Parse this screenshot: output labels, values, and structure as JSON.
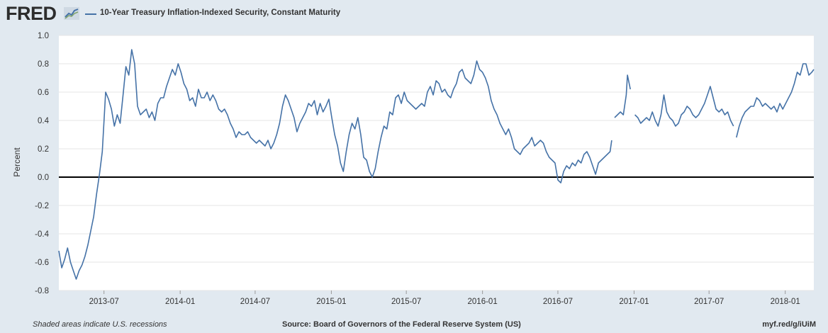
{
  "header": {
    "logo_text": "FRED",
    "logo_icon": "chart-line-icon",
    "series_title": "10-Year Treasury Inflation-Indexed Security, Constant Maturity",
    "series_color": "#4572a7"
  },
  "footer": {
    "left_note": "Shaded areas indicate U.S. recessions",
    "source": "Source: Board of Governors of the Federal Reserve System (US)",
    "link": "myf.red/g/iUiM"
  },
  "chart_data": {
    "type": "line",
    "title": "10-Year Treasury Inflation-Indexed Security, Constant Maturity",
    "xlabel": "",
    "ylabel": "Percent",
    "ylim": [
      -0.8,
      1.0
    ],
    "yticks": [
      "1.0",
      "0.8",
      "0.6",
      "0.4",
      "0.2",
      "0.0",
      "-0.2",
      "-0.4",
      "-0.6",
      "-0.8"
    ],
    "xlim": [
      "2013-03-14",
      "2018-03-11"
    ],
    "xticks": [
      "2013-07",
      "2014-01",
      "2014-07",
      "2015-01",
      "2015-07",
      "2016-01",
      "2016-07",
      "2017-01",
      "2017-07",
      "2018-01"
    ],
    "grid": "horizontal",
    "zero_line": true,
    "series": [
      {
        "name": "10-Year Treasury Inflation-Indexed Security, Constant Maturity",
        "color": "#4572a7",
        "points": [
          [
            "2013-03-14",
            -0.52
          ],
          [
            "2013-03-21",
            -0.64
          ],
          [
            "2013-03-28",
            -0.58
          ],
          [
            "2013-04-04",
            -0.5
          ],
          [
            "2013-04-11",
            -0.6
          ],
          [
            "2013-04-18",
            -0.66
          ],
          [
            "2013-04-25",
            -0.72
          ],
          [
            "2013-05-02",
            -0.66
          ],
          [
            "2013-05-09",
            -0.62
          ],
          [
            "2013-05-16",
            -0.56
          ],
          [
            "2013-05-23",
            -0.48
          ],
          [
            "2013-05-30",
            -0.38
          ],
          [
            "2013-06-06",
            -0.28
          ],
          [
            "2013-06-13",
            -0.12
          ],
          [
            "2013-06-20",
            0.02
          ],
          [
            "2013-06-27",
            0.18
          ],
          [
            "2013-07-05",
            0.6
          ],
          [
            "2013-07-12",
            0.55
          ],
          [
            "2013-07-19",
            0.48
          ],
          [
            "2013-07-26",
            0.36
          ],
          [
            "2013-08-02",
            0.44
          ],
          [
            "2013-08-09",
            0.38
          ],
          [
            "2013-08-16",
            0.58
          ],
          [
            "2013-08-23",
            0.78
          ],
          [
            "2013-08-30",
            0.72
          ],
          [
            "2013-09-06",
            0.9
          ],
          [
            "2013-09-13",
            0.8
          ],
          [
            "2013-09-20",
            0.5
          ],
          [
            "2013-09-27",
            0.44
          ],
          [
            "2013-10-04",
            0.46
          ],
          [
            "2013-10-11",
            0.48
          ],
          [
            "2013-10-18",
            0.42
          ],
          [
            "2013-10-25",
            0.46
          ],
          [
            "2013-11-01",
            0.4
          ],
          [
            "2013-11-08",
            0.52
          ],
          [
            "2013-11-15",
            0.56
          ],
          [
            "2013-11-22",
            0.56
          ],
          [
            "2013-11-29",
            0.64
          ],
          [
            "2013-12-06",
            0.7
          ],
          [
            "2013-12-13",
            0.76
          ],
          [
            "2013-12-20",
            0.72
          ],
          [
            "2013-12-27",
            0.8
          ],
          [
            "2014-01-03",
            0.74
          ],
          [
            "2014-01-10",
            0.66
          ],
          [
            "2014-01-17",
            0.62
          ],
          [
            "2014-01-24",
            0.54
          ],
          [
            "2014-01-31",
            0.56
          ],
          [
            "2014-02-07",
            0.5
          ],
          [
            "2014-02-14",
            0.62
          ],
          [
            "2014-02-21",
            0.56
          ],
          [
            "2014-02-28",
            0.56
          ],
          [
            "2014-03-07",
            0.6
          ],
          [
            "2014-03-14",
            0.54
          ],
          [
            "2014-03-21",
            0.58
          ],
          [
            "2014-03-28",
            0.54
          ],
          [
            "2014-04-04",
            0.48
          ],
          [
            "2014-04-11",
            0.46
          ],
          [
            "2014-04-18",
            0.48
          ],
          [
            "2014-04-25",
            0.44
          ],
          [
            "2014-05-02",
            0.38
          ],
          [
            "2014-05-09",
            0.34
          ],
          [
            "2014-05-16",
            0.28
          ],
          [
            "2014-05-23",
            0.32
          ],
          [
            "2014-05-30",
            0.3
          ],
          [
            "2014-06-06",
            0.3
          ],
          [
            "2014-06-13",
            0.32
          ],
          [
            "2014-06-20",
            0.28
          ],
          [
            "2014-06-27",
            0.26
          ],
          [
            "2014-07-04",
            0.24
          ],
          [
            "2014-07-11",
            0.26
          ],
          [
            "2014-07-18",
            0.24
          ],
          [
            "2014-07-25",
            0.22
          ],
          [
            "2014-08-01",
            0.26
          ],
          [
            "2014-08-08",
            0.2
          ],
          [
            "2014-08-15",
            0.24
          ],
          [
            "2014-08-22",
            0.3
          ],
          [
            "2014-08-29",
            0.38
          ],
          [
            "2014-09-05",
            0.5
          ],
          [
            "2014-09-12",
            0.58
          ],
          [
            "2014-09-19",
            0.54
          ],
          [
            "2014-09-26",
            0.48
          ],
          [
            "2014-10-03",
            0.42
          ],
          [
            "2014-10-10",
            0.32
          ],
          [
            "2014-10-17",
            0.38
          ],
          [
            "2014-10-24",
            0.42
          ],
          [
            "2014-10-31",
            0.46
          ],
          [
            "2014-11-07",
            0.52
          ],
          [
            "2014-11-14",
            0.5
          ],
          [
            "2014-11-21",
            0.54
          ],
          [
            "2014-11-28",
            0.44
          ],
          [
            "2014-12-05",
            0.52
          ],
          [
            "2014-12-12",
            0.46
          ],
          [
            "2014-12-19",
            0.5
          ],
          [
            "2014-12-26",
            0.55
          ],
          [
            "2015-01-02",
            0.42
          ],
          [
            "2015-01-09",
            0.3
          ],
          [
            "2015-01-16",
            0.22
          ],
          [
            "2015-01-23",
            0.1
          ],
          [
            "2015-01-30",
            0.04
          ],
          [
            "2015-02-06",
            0.18
          ],
          [
            "2015-02-13",
            0.3
          ],
          [
            "2015-02-20",
            0.38
          ],
          [
            "2015-02-27",
            0.34
          ],
          [
            "2015-03-06",
            0.42
          ],
          [
            "2015-03-13",
            0.3
          ],
          [
            "2015-03-20",
            0.14
          ],
          [
            "2015-03-27",
            0.12
          ],
          [
            "2015-04-03",
            0.04
          ],
          [
            "2015-04-10",
            0.0
          ],
          [
            "2015-04-17",
            0.06
          ],
          [
            "2015-04-24",
            0.18
          ],
          [
            "2015-05-01",
            0.28
          ],
          [
            "2015-05-08",
            0.36
          ],
          [
            "2015-05-15",
            0.34
          ],
          [
            "2015-05-22",
            0.46
          ],
          [
            "2015-05-29",
            0.44
          ],
          [
            "2015-06-05",
            0.56
          ],
          [
            "2015-06-12",
            0.58
          ],
          [
            "2015-06-19",
            0.52
          ],
          [
            "2015-06-26",
            0.6
          ],
          [
            "2015-07-03",
            0.54
          ],
          [
            "2015-07-10",
            0.52
          ],
          [
            "2015-07-17",
            0.5
          ],
          [
            "2015-07-24",
            0.48
          ],
          [
            "2015-07-31",
            0.5
          ],
          [
            "2015-08-07",
            0.52
          ],
          [
            "2015-08-14",
            0.5
          ],
          [
            "2015-08-21",
            0.6
          ],
          [
            "2015-08-28",
            0.64
          ],
          [
            "2015-09-04",
            0.58
          ],
          [
            "2015-09-11",
            0.68
          ],
          [
            "2015-09-18",
            0.66
          ],
          [
            "2015-09-25",
            0.6
          ],
          [
            "2015-10-02",
            0.62
          ],
          [
            "2015-10-09",
            0.58
          ],
          [
            "2015-10-16",
            0.56
          ],
          [
            "2015-10-23",
            0.62
          ],
          [
            "2015-10-30",
            0.66
          ],
          [
            "2015-11-06",
            0.74
          ],
          [
            "2015-11-13",
            0.76
          ],
          [
            "2015-11-20",
            0.7
          ],
          [
            "2015-11-27",
            0.68
          ],
          [
            "2015-12-04",
            0.66
          ],
          [
            "2015-12-11",
            0.72
          ],
          [
            "2015-12-18",
            0.82
          ],
          [
            "2015-12-25",
            0.76
          ],
          [
            "2016-01-01",
            0.74
          ],
          [
            "2016-01-08",
            0.7
          ],
          [
            "2016-01-15",
            0.64
          ],
          [
            "2016-01-22",
            0.54
          ],
          [
            "2016-01-29",
            0.48
          ],
          [
            "2016-02-05",
            0.44
          ],
          [
            "2016-02-12",
            0.38
          ],
          [
            "2016-02-19",
            0.34
          ],
          [
            "2016-02-26",
            0.3
          ],
          [
            "2016-03-04",
            0.34
          ],
          [
            "2016-03-11",
            0.28
          ],
          [
            "2016-03-18",
            0.2
          ],
          [
            "2016-03-25",
            0.18
          ],
          [
            "2016-04-01",
            0.16
          ],
          [
            "2016-04-08",
            0.2
          ],
          [
            "2016-04-15",
            0.22
          ],
          [
            "2016-04-22",
            0.24
          ],
          [
            "2016-04-29",
            0.28
          ],
          [
            "2016-05-06",
            0.22
          ],
          [
            "2016-05-13",
            0.24
          ],
          [
            "2016-05-20",
            0.26
          ],
          [
            "2016-05-27",
            0.24
          ],
          [
            "2016-06-03",
            0.18
          ],
          [
            "2016-06-10",
            0.14
          ],
          [
            "2016-06-17",
            0.12
          ],
          [
            "2016-06-24",
            0.1
          ],
          [
            "2016-07-01",
            -0.02
          ],
          [
            "2016-07-08",
            -0.04
          ],
          [
            "2016-07-15",
            0.04
          ],
          [
            "2016-07-22",
            0.08
          ],
          [
            "2016-07-29",
            0.06
          ],
          [
            "2016-08-05",
            0.1
          ],
          [
            "2016-08-12",
            0.08
          ],
          [
            "2016-08-19",
            0.12
          ],
          [
            "2016-08-26",
            0.1
          ],
          [
            "2016-09-02",
            0.16
          ],
          [
            "2016-09-09",
            0.18
          ],
          [
            "2016-09-16",
            0.14
          ],
          [
            "2016-09-23",
            0.08
          ],
          [
            "2016-09-30",
            0.02
          ],
          [
            "2016-10-07",
            0.1
          ],
          [
            "2016-10-14",
            0.12
          ],
          [
            "2016-10-21",
            0.14
          ],
          [
            "2016-10-28",
            0.16
          ],
          [
            "2016-11-04",
            0.18
          ],
          [
            "2016-11-08",
            0.26
          ],
          [
            null,
            null
          ],
          [
            "2016-11-15",
            0.42
          ],
          [
            "2016-11-22",
            0.44
          ],
          [
            "2016-11-29",
            0.46
          ],
          [
            "2016-12-06",
            0.44
          ],
          [
            "2016-12-13",
            0.58
          ],
          [
            "2016-12-16",
            0.72
          ],
          [
            "2016-12-23",
            0.62
          ],
          [
            null,
            null
          ],
          [
            "2017-01-03",
            0.44
          ],
          [
            "2017-01-10",
            0.42
          ],
          [
            "2017-01-17",
            0.38
          ],
          [
            "2017-01-24",
            0.4
          ],
          [
            "2017-01-31",
            0.42
          ],
          [
            "2017-02-07",
            0.4
          ],
          [
            "2017-02-14",
            0.46
          ],
          [
            "2017-02-21",
            0.4
          ],
          [
            "2017-02-28",
            0.36
          ],
          [
            "2017-03-07",
            0.44
          ],
          [
            "2017-03-14",
            0.58
          ],
          [
            "2017-03-21",
            0.46
          ],
          [
            "2017-03-28",
            0.42
          ],
          [
            "2017-04-04",
            0.4
          ],
          [
            "2017-04-11",
            0.36
          ],
          [
            "2017-04-18",
            0.38
          ],
          [
            "2017-04-25",
            0.44
          ],
          [
            "2017-05-02",
            0.46
          ],
          [
            "2017-05-09",
            0.5
          ],
          [
            "2017-05-16",
            0.48
          ],
          [
            "2017-05-23",
            0.44
          ],
          [
            "2017-05-30",
            0.42
          ],
          [
            "2017-06-06",
            0.44
          ],
          [
            "2017-06-13",
            0.48
          ],
          [
            "2017-06-20",
            0.52
          ],
          [
            "2017-06-27",
            0.58
          ],
          [
            "2017-07-04",
            0.64
          ],
          [
            "2017-07-11",
            0.56
          ],
          [
            "2017-07-18",
            0.48
          ],
          [
            "2017-07-25",
            0.46
          ],
          [
            "2017-08-01",
            0.48
          ],
          [
            "2017-08-08",
            0.44
          ],
          [
            "2017-08-15",
            0.46
          ],
          [
            "2017-08-22",
            0.4
          ],
          [
            "2017-08-29",
            0.36
          ],
          [
            null,
            null
          ],
          [
            "2017-09-05",
            0.28
          ],
          [
            "2017-09-12",
            0.36
          ],
          [
            "2017-09-19",
            0.42
          ],
          [
            "2017-09-26",
            0.46
          ],
          [
            "2017-10-03",
            0.48
          ],
          [
            "2017-10-10",
            0.5
          ],
          [
            "2017-10-17",
            0.5
          ],
          [
            "2017-10-24",
            0.56
          ],
          [
            "2017-10-31",
            0.54
          ],
          [
            "2017-11-07",
            0.5
          ],
          [
            "2017-11-14",
            0.52
          ],
          [
            "2017-11-21",
            0.5
          ],
          [
            "2017-11-28",
            0.48
          ],
          [
            "2017-12-05",
            0.5
          ],
          [
            "2017-12-12",
            0.46
          ],
          [
            "2017-12-19",
            0.52
          ],
          [
            "2017-12-26",
            0.48
          ],
          [
            "2018-01-02",
            0.52
          ],
          [
            "2018-01-09",
            0.56
          ],
          [
            "2018-01-16",
            0.6
          ],
          [
            "2018-01-23",
            0.66
          ],
          [
            "2018-01-30",
            0.74
          ],
          [
            "2018-02-06",
            0.72
          ],
          [
            "2018-02-13",
            0.8
          ],
          [
            "2018-02-20",
            0.8
          ],
          [
            "2018-02-27",
            0.72
          ],
          [
            "2018-03-06",
            0.74
          ],
          [
            "2018-03-11",
            0.76
          ]
        ]
      }
    ]
  }
}
